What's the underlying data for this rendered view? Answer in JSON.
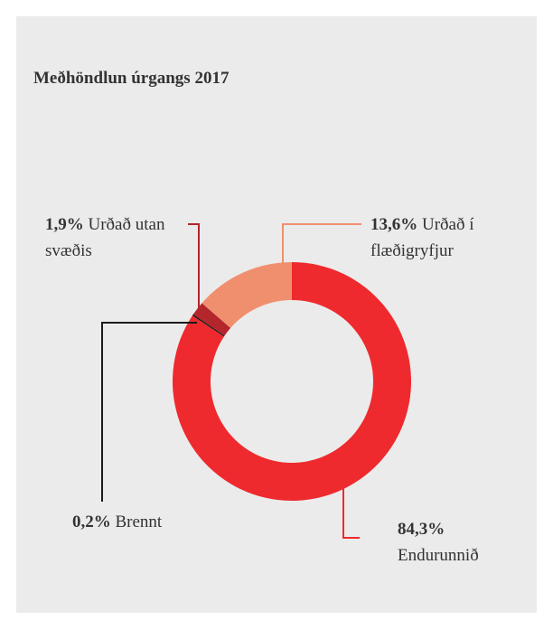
{
  "chart_data": {
    "type": "donut",
    "title": "Meðhöndlun úrgangs 2017",
    "categories": [
      "Endurunnið",
      "Brennt",
      "Urðað utan svæðis",
      "Urðað í flæðigryfjur"
    ],
    "values": [
      84.3,
      0.2,
      1.9,
      13.6
    ],
    "value_labels": [
      "84,3%",
      "0,2%",
      "1,9%",
      "13,6%"
    ],
    "colors": [
      "#ee2a2e",
      "#1a1a1a",
      "#b3262c",
      "#f08f6e"
    ]
  }
}
